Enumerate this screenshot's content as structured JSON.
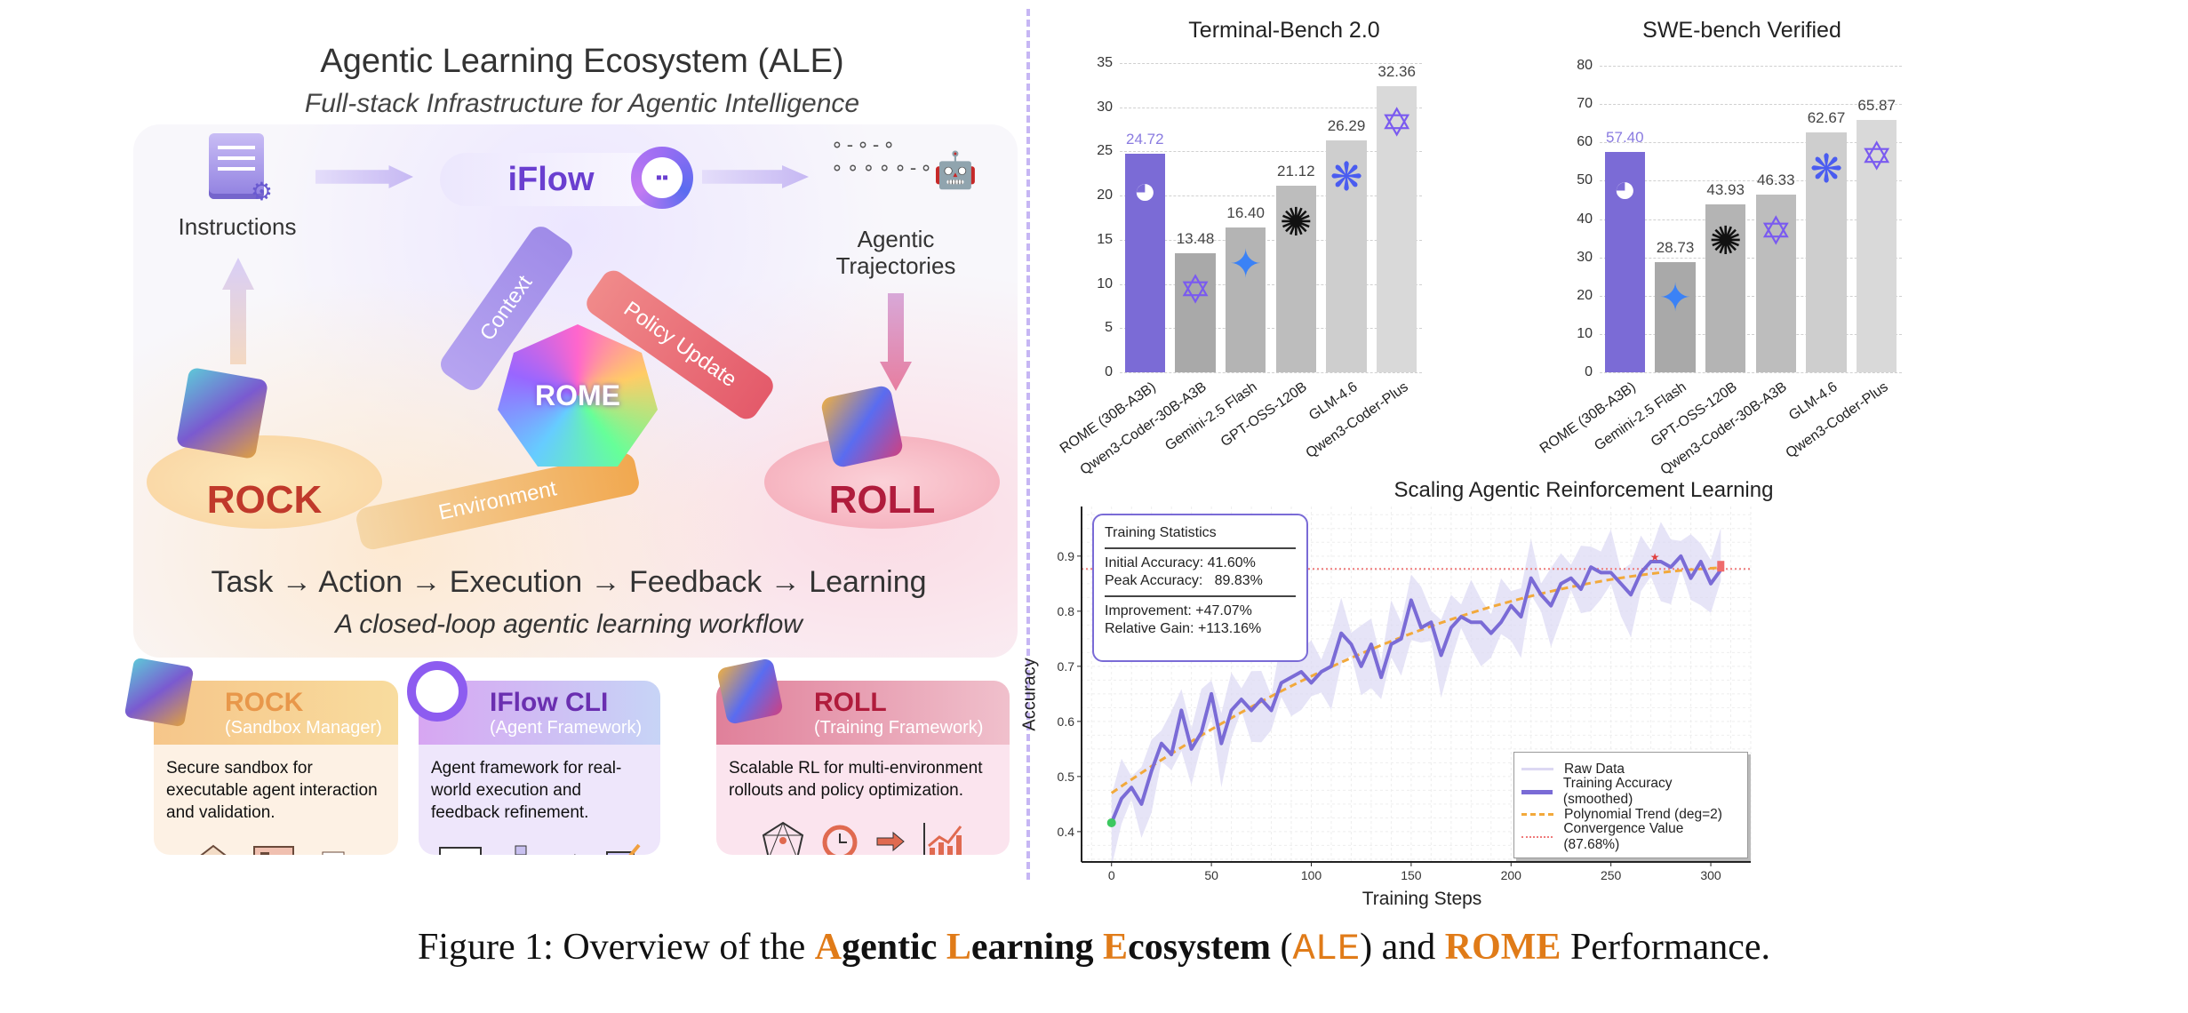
{
  "left_panel": {
    "title": "Agentic Learning Ecosystem (ALE)",
    "subtitle": "Full-stack Infrastructure for Agentic Intelligence",
    "instructions_label": "Instructions",
    "iflow_label": "iFlow",
    "trajectories_label_1": "Agentic",
    "trajectories_label_2": "Trajectories",
    "context_label": "Context",
    "policy_update_label": "Policy Update",
    "environment_label": "Environment",
    "rome_label": "ROME",
    "rock_label": "ROCK",
    "roll_label": "ROLL",
    "workflow": "Task → Action → Execution → Feedback → Learning",
    "workflow_caption": "A closed-loop agentic learning workflow",
    "cards": [
      {
        "title": "ROCK",
        "subtitle": "(Sandbox Manager)",
        "body": "Secure sandbox for executable agent interaction and validation.",
        "color": "#e8974a"
      },
      {
        "title": "IFlow CLI",
        "subtitle": "(Agent Framework)",
        "body": "Agent framework for real-world execution and feedback refinement.",
        "color": "#6a2fb0"
      },
      {
        "title": "ROLL",
        "subtitle": "(Training Framework)",
        "body": "Scalable RL for multi-environment rollouts and policy optimization.",
        "color": "#b01c3c"
      }
    ]
  },
  "chart_data": [
    {
      "type": "bar",
      "title": "Terminal-Bench 2.0",
      "categories": [
        "ROME (30B-A3B)",
        "Qwen3-Coder-30B-A3B",
        "Gemini-2.5 Flash",
        "GPT-OSS-120B",
        "GLM-4.6",
        "Qwen3-Coder-Plus"
      ],
      "values": [
        24.72,
        13.48,
        16.4,
        21.12,
        26.29,
        32.36
      ],
      "value_labels": [
        "24.72",
        "13.48",
        "16.40",
        "21.12",
        "26.29",
        "32.36"
      ],
      "logos": [
        "iflow-logo",
        "qwen-logo",
        "gemini-logo",
        "openai-logo",
        "glm-logo",
        "qwen-logo"
      ],
      "bar_colors": [
        "#7b6bd6",
        "#a9a9a9",
        "#b4b4b4",
        "#bdbdbd",
        "#cecece",
        "#d9d9d9"
      ],
      "yticks": [
        "0",
        "5",
        "10",
        "15",
        "20",
        "25",
        "30",
        "35"
      ],
      "ylim": [
        0,
        35
      ],
      "grid": true
    },
    {
      "type": "bar",
      "title": "SWE-bench Verified",
      "categories": [
        "ROME (30B-A3B)",
        "Gemini-2.5 Flash",
        "GPT-OSS-120B",
        "Qwen3-Coder-30B-A3B",
        "GLM-4.6",
        "Qwen3-Coder-Plus"
      ],
      "values": [
        57.4,
        28.73,
        43.93,
        46.33,
        62.67,
        65.87
      ],
      "value_labels": [
        "57.40",
        "28.73",
        "43.93",
        "46.33",
        "62.67",
        "65.87"
      ],
      "logos": [
        "iflow-logo",
        "gemini-logo",
        "openai-logo",
        "qwen-logo",
        "glm-logo",
        "qwen-logo"
      ],
      "bar_colors": [
        "#7b6bd6",
        "#a9a9a9",
        "#b4b4b4",
        "#bdbdbd",
        "#cecece",
        "#d9d9d9"
      ],
      "yticks": [
        "0",
        "10",
        "20",
        "30",
        "40",
        "50",
        "60",
        "70",
        "80"
      ],
      "ylim": [
        0,
        80
      ],
      "grid": true
    },
    {
      "type": "line",
      "title": "Scaling Agentic Reinforcement Learning",
      "xlabel": "Training Steps",
      "ylabel": "Accuracy",
      "xlim": [
        -15,
        320
      ],
      "ylim": [
        0.345,
        0.99
      ],
      "xticks": [
        "0",
        "50",
        "100",
        "150",
        "200",
        "250",
        "300"
      ],
      "yticks": [
        "0.4",
        "0.5",
        "0.6",
        "0.7",
        "0.8",
        "0.9"
      ],
      "smoothed": {
        "x": [
          0,
          5,
          10,
          15,
          20,
          25,
          30,
          35,
          40,
          45,
          50,
          55,
          60,
          65,
          70,
          75,
          80,
          85,
          90,
          95,
          100,
          105,
          110,
          115,
          120,
          125,
          130,
          135,
          140,
          145,
          150,
          155,
          160,
          165,
          170,
          175,
          180,
          185,
          190,
          195,
          200,
          205,
          210,
          215,
          220,
          225,
          230,
          235,
          240,
          245,
          250,
          255,
          260,
          265,
          270,
          275,
          280,
          285,
          290,
          295,
          300,
          305
        ],
        "y": [
          0.416,
          0.46,
          0.48,
          0.45,
          0.51,
          0.56,
          0.54,
          0.62,
          0.55,
          0.58,
          0.65,
          0.56,
          0.62,
          0.64,
          0.62,
          0.64,
          0.62,
          0.67,
          0.68,
          0.69,
          0.67,
          0.69,
          0.7,
          0.76,
          0.74,
          0.7,
          0.74,
          0.68,
          0.74,
          0.75,
          0.82,
          0.77,
          0.78,
          0.72,
          0.77,
          0.79,
          0.78,
          0.78,
          0.76,
          0.78,
          0.81,
          0.79,
          0.86,
          0.83,
          0.81,
          0.85,
          0.86,
          0.84,
          0.88,
          0.87,
          0.87,
          0.85,
          0.83,
          0.87,
          0.89,
          0.89,
          0.88,
          0.9,
          0.86,
          0.89,
          0.85,
          0.875
        ]
      },
      "raw_band_halfwidth": 0.05,
      "trend_coefficients": [
        0.47,
        0.0025,
        -3.8e-06
      ],
      "convergence_value": 0.8768,
      "markers": {
        "initial": [
          0,
          0.416
        ],
        "peak": [
          272,
          0.8983
        ],
        "final": [
          305,
          0.88
        ]
      },
      "legend": [
        "Raw Data",
        "Training Accuracy (smoothed)",
        "Polynomial Trend (deg=2)",
        "Convergence Value (87.68%)"
      ],
      "legend_position": "lower-right",
      "stats": {
        "title": "Training Statistics",
        "initial": "Initial Accuracy: 41.60%",
        "peak_label": "Peak Accuracy:",
        "peak_value": "89.83%",
        "improvement": "Improvement: +47.07%",
        "relative_gain": "Relative Gain: +113.16%"
      },
      "colors": {
        "smoothed": "#7a6bd6",
        "band": "#dcd8f3",
        "trend": "#f2a93b",
        "convergence": "#ef7b7b"
      }
    }
  ],
  "caption": [
    {
      "text": "Figure 1: Overview of the ",
      "style": ""
    },
    {
      "text": "A",
      "style": "hl"
    },
    {
      "text": "gentic ",
      "style": "b"
    },
    {
      "text": "L",
      "style": "hl"
    },
    {
      "text": "earning ",
      "style": "b"
    },
    {
      "text": "E",
      "style": "hl"
    },
    {
      "text": "cosystem",
      "style": "b"
    },
    {
      "text": " (",
      "style": ""
    },
    {
      "text": "ALE",
      "style": "mono"
    },
    {
      "text": ") and ",
      "style": ""
    },
    {
      "text": "ROME",
      "style": "hl"
    },
    {
      "text": " Performance.",
      "style": ""
    }
  ]
}
